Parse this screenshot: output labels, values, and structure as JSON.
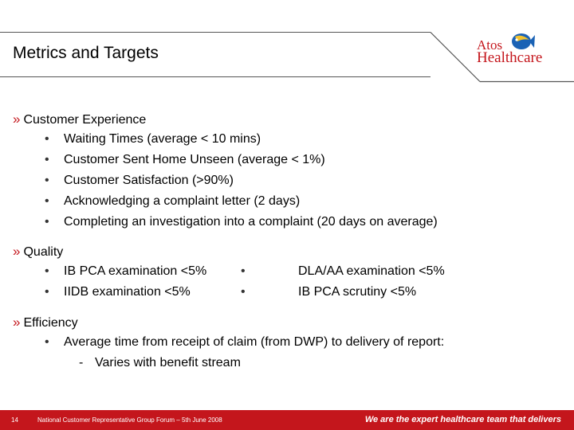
{
  "header": {
    "title": "Metrics and Targets"
  },
  "logo": {
    "line1": "Atos",
    "line2": "Healthcare"
  },
  "sections": {
    "customer": {
      "heading": "Customer Experience",
      "items": [
        "Waiting Times (average < 10 mins)",
        "Customer Sent Home Unseen (average < 1%)",
        "Customer Satisfaction (>90%)",
        "Acknowledging a complaint letter (2 days)",
        "Completing an investigation into a complaint (20 days on average)"
      ]
    },
    "quality": {
      "heading": "Quality",
      "left": [
        "IB PCA examination <5%",
        "IIDB examination <5%"
      ],
      "right": [
        "DLA/AA examination <5%",
        "IB PCA scrutiny <5%"
      ]
    },
    "efficiency": {
      "heading": "Efficiency",
      "item": "Average time from receipt of claim (from DWP) to delivery of report:",
      "sub": "Varies with benefit stream"
    }
  },
  "glyphs": {
    "chevron": "»",
    "bullet": "•",
    "dash": "-"
  },
  "footer": {
    "page_number": "14",
    "forum": "National Customer Representative Group Forum – 5th June 2008",
    "tagline": "We are the expert healthcare team that delivers"
  },
  "colors": {
    "brand_red": "#c4161c",
    "header_line": "#555555"
  }
}
